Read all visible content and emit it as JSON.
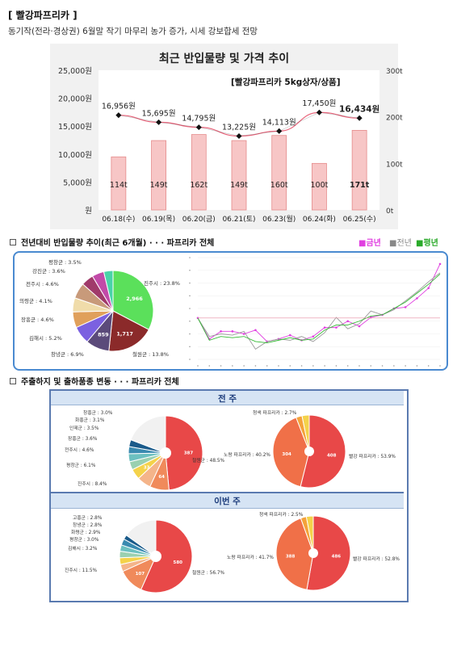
{
  "doc": {
    "title": "[ 빨강파프리카 ]",
    "subtitle": "동기작(전라·경상권) 6월말 작기 마무리 농가 증가, 시세 강보합세 전망"
  },
  "section1": {
    "title": "전년대비 반입물량 추이(최근 6개월) · · · 파프리카 전체",
    "legend_current": "■금년",
    "legend_prev": "■전년",
    "legend_avg": "■평년"
  },
  "section2": {
    "title": "주출하지 및 출하품종 변동 · · · 파프리카 전체",
    "prev_week_label": "전 주",
    "this_week_label": "이번 주"
  },
  "chart_data": [
    {
      "type": "bar",
      "title": "최근 반입물량 및 가격 추이",
      "annotation": "[빨강파프리카 5kg상자/상품]",
      "categories": [
        "06.18(수)",
        "06.19(목)",
        "06.20(금)",
        "06.21(토)",
        "06.23(월)",
        "06.24(화)",
        "06.25(수)"
      ],
      "series": [
        {
          "kind": "bar",
          "values": [
            114,
            149,
            162,
            149,
            160,
            100,
            171
          ],
          "labels": [
            "114t",
            "149t",
            "162t",
            "149t",
            "160t",
            "100t",
            "171t"
          ],
          "color": "#f7c6c6"
        },
        {
          "kind": "line",
          "values": [
            16956,
            15695,
            14795,
            13225,
            14113,
            17450,
            16434
          ],
          "labels": [
            "16,956원",
            "15,695원",
            "14,795원",
            "13,225원",
            "14,113원",
            "17,450원",
            "16,434원"
          ]
        }
      ],
      "y_left_ticks": [
        "25,000원",
        "20,000원",
        "15,000원",
        "10,000원",
        "5,000원",
        "원"
      ],
      "y_right_ticks": [
        "300t",
        "200t",
        "100t",
        "0t"
      ],
      "ylim_left": [
        0,
        25000
      ],
      "ylim_right": [
        0,
        300
      ],
      "colors": {
        "bar": "#f7c6c6",
        "bar_stroke": "#e58b8b",
        "line_smooth": "#e8637a",
        "line_marker": "#111111"
      }
    },
    {
      "type": "pie",
      "slices": [
        {
          "label": "진주시 : 23.8%",
          "value": 23.8,
          "inner": "2,966",
          "color": "#5be05b"
        },
        {
          "label": "철원군 : 13.8%",
          "value": 13.8,
          "inner": "1,717",
          "color": "#8b2a2a"
        },
        {
          "label": "창녕군 : 6.9%",
          "value": 6.9,
          "inner": "859",
          "color": "#5b4a7a"
        },
        {
          "label": "김해시 : 5.2%",
          "value": 5.2,
          "inner": "",
          "color": "#7b61e0"
        },
        {
          "label": "장흥군 : 4.6%",
          "value": 4.6,
          "inner": "",
          "color": "#e0a05b"
        },
        {
          "label": "의령군 : 4.1%",
          "value": 4.1,
          "inner": "",
          "color": "#f0dcaa"
        },
        {
          "label": "전주시 : 4.6%",
          "value": 4.6,
          "inner": "",
          "color": "#c89a7a"
        },
        {
          "label": "강진군 : 3.6%",
          "value": 3.6,
          "inner": "",
          "color": "#a03a6a"
        },
        {
          "label": "평창군 : 3.5%",
          "value": 3.5,
          "inner": "",
          "color": "#c24aa8"
        },
        {
          "label": "",
          "value": 2.7,
          "inner": "",
          "color": "#49d3a8"
        }
      ]
    },
    {
      "type": "line",
      "series": [
        {
          "name": "금년",
          "color": "#e040e0",
          "values": [
            0.95,
            0.62,
            0.74,
            0.74,
            0.7,
            0.76,
            0.58,
            0.62,
            0.68,
            0.6,
            0.66,
            0.8,
            0.8,
            0.9,
            0.82,
            0.96,
            1.0,
            1.1,
            1.12,
            1.26,
            1.42,
            1.8
          ]
        },
        {
          "name": "전년",
          "color": "#9a9a9a",
          "values": [
            0.95,
            0.66,
            0.7,
            0.68,
            0.74,
            0.46,
            0.58,
            0.62,
            0.6,
            0.66,
            0.58,
            0.72,
            0.96,
            0.78,
            0.86,
            1.06,
            1.0,
            1.08,
            1.22,
            1.36,
            1.52,
            1.66
          ]
        },
        {
          "name": "평년",
          "color": "#33bb33",
          "values": [
            0.95,
            0.6,
            0.66,
            0.64,
            0.66,
            0.58,
            0.56,
            0.6,
            0.64,
            0.6,
            0.62,
            0.76,
            0.84,
            0.84,
            0.9,
            0.98,
            1.0,
            1.1,
            1.2,
            1.34,
            1.48,
            1.64
          ]
        },
        {
          "name": "",
          "color": "#e58ba0",
          "values": [
            0.95,
            0.95,
            0.95,
            0.95,
            0.95,
            0.95,
            0.95,
            0.95,
            0.95,
            0.95,
            0.95,
            0.95,
            0.95,
            0.95,
            0.95,
            0.95,
            0.95,
            0.95,
            0.95,
            0.95,
            0.95,
            0.95
          ]
        }
      ]
    },
    {
      "type": "pie",
      "panel": "전 주",
      "slices": [
        {
          "label": "철원군 : 48.5%",
          "value": 48.5,
          "inner": "387",
          "color": "#e84848"
        },
        {
          "label": "진주시 : 8.4%",
          "value": 8.4,
          "inner": "64",
          "color": "#f08a5b"
        },
        {
          "label": "평창군 : 6.1%",
          "value": 6.1,
          "inner": "",
          "color": "#f4b48a"
        },
        {
          "label": "전주시 : 4.6%",
          "value": 4.6,
          "inner": "33",
          "color": "#f4d24a"
        },
        {
          "label": "장흥군 : 3.6%",
          "value": 3.6,
          "inner": "",
          "color": "#9ad0b0"
        },
        {
          "label": "인제군 : 3.5%",
          "value": 3.5,
          "inner": "",
          "color": "#6cc0c0"
        },
        {
          "label": "화홍군 : 3.1%",
          "value": 3.1,
          "inner": "",
          "color": "#3a8ab0"
        },
        {
          "label": "창흥군 : 3.0%",
          "value": 3.0,
          "inner": "",
          "color": "#1a5a8a"
        },
        {
          "label": "",
          "value": 19.2,
          "inner": "",
          "color": "#f1f1f1"
        }
      ]
    },
    {
      "type": "pie",
      "panel": "전 주",
      "slices": [
        {
          "label": "빨강 파프리카 : 53.9%",
          "value": 53.9,
          "inner": "408",
          "color": "#e84848"
        },
        {
          "label": "노랑 파프리카 : 40.2%",
          "value": 40.2,
          "inner": "304",
          "color": "#f07048"
        },
        {
          "label": "청색 파프리카 : 2.7%",
          "value": 2.7,
          "inner": "",
          "color": "#f4a23a"
        },
        {
          "label": "",
          "value": 3.2,
          "inner": "",
          "color": "#f4d24a"
        }
      ]
    },
    {
      "type": "pie",
      "panel": "이번 주",
      "slices": [
        {
          "label": "철원군 : 56.7%",
          "value": 56.7,
          "inner": "580",
          "color": "#e84848"
        },
        {
          "label": "진주시 : 11.5%",
          "value": 11.5,
          "inner": "107",
          "color": "#f08a5b"
        },
        {
          "label": "김해시 : 3.2%",
          "value": 3.2,
          "inner": "",
          "color": "#f4b48a"
        },
        {
          "label": "평창군 : 3.0%",
          "value": 3.0,
          "inner": "",
          "color": "#f4d24a"
        },
        {
          "label": "화령군 : 2.9%",
          "value": 2.9,
          "inner": "",
          "color": "#9ad0b0"
        },
        {
          "label": "창녕군 : 2.8%",
          "value": 2.8,
          "inner": "",
          "color": "#6cc0c0"
        },
        {
          "label": "고흥군 : 2.8%",
          "value": 2.8,
          "inner": "",
          "color": "#3a8ab0"
        },
        {
          "label": "",
          "value": 2.0,
          "inner": "",
          "color": "#1a5a8a"
        },
        {
          "label": "",
          "value": 15.1,
          "inner": "",
          "color": "#f1f1f1"
        }
      ]
    },
    {
      "type": "pie",
      "panel": "이번 주",
      "slices": [
        {
          "label": "빨강 파프리카 : 52.8%",
          "value": 52.8,
          "inner": "486",
          "color": "#e84848"
        },
        {
          "label": "노랑 파프리카 : 41.7%",
          "value": 41.7,
          "inner": "388",
          "color": "#f07048"
        },
        {
          "label": "청색 파프리카 : 2.5%",
          "value": 2.5,
          "inner": "",
          "color": "#f4a23a"
        },
        {
          "label": "",
          "value": 3.0,
          "inner": "",
          "color": "#f4d24a"
        }
      ]
    }
  ]
}
